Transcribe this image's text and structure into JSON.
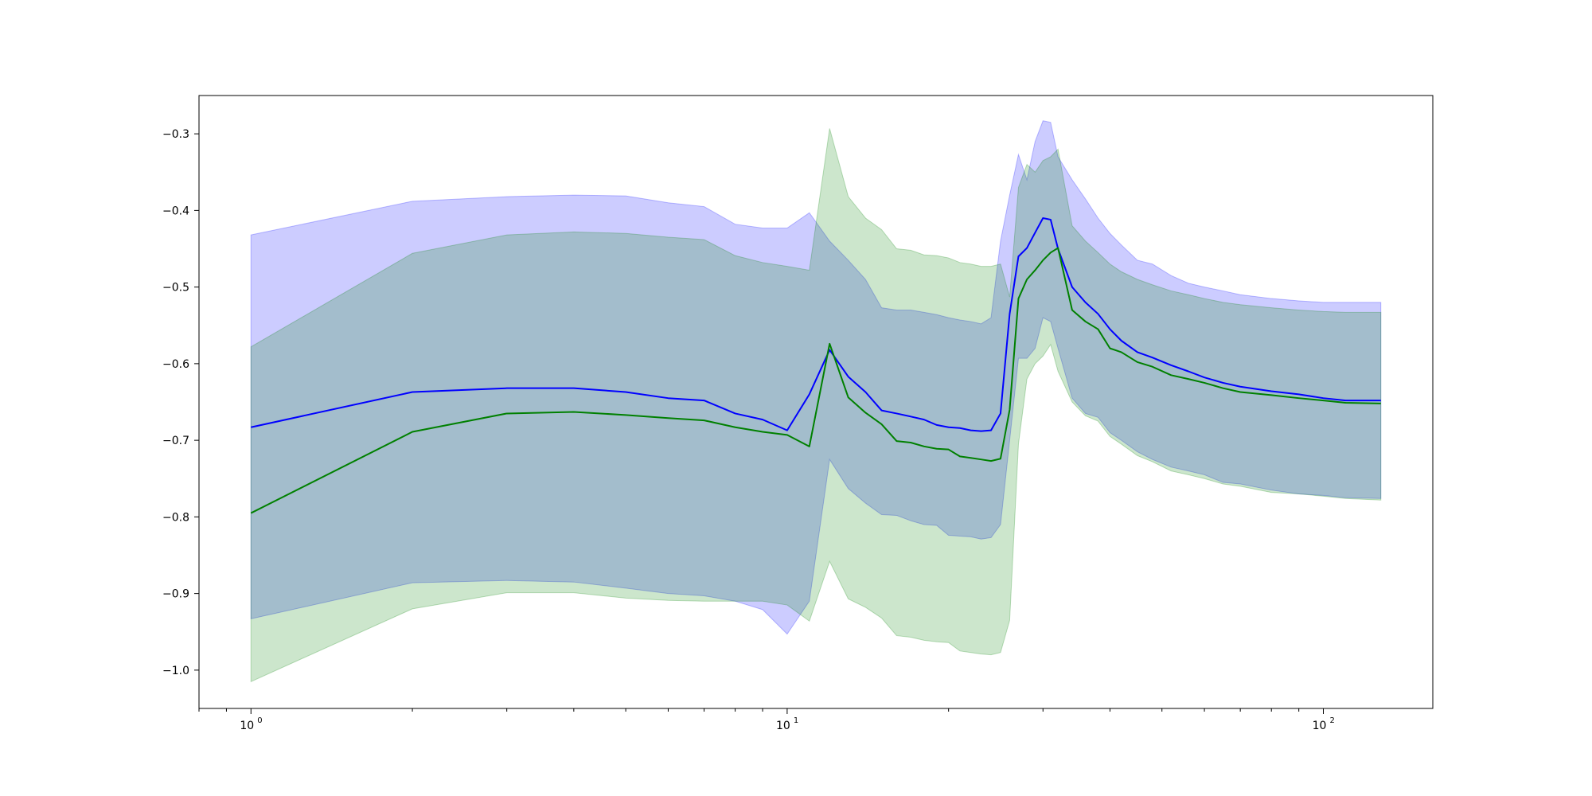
{
  "chart_data": {
    "type": "line",
    "title": "",
    "xlabel": "",
    "ylabel": "",
    "xscale": "log",
    "xlim": [
      0.8,
      160
    ],
    "ylim": [
      -1.05,
      -0.25
    ],
    "grid": false,
    "legend": "none",
    "x_ticks": [
      {
        "base": "10",
        "exp": "0"
      },
      {
        "base": "10",
        "exp": "1"
      },
      {
        "base": "10",
        "exp": "2"
      }
    ],
    "y_ticks": [
      "−0.3",
      "−0.4",
      "−0.5",
      "−0.6",
      "−0.7",
      "−0.8",
      "−0.9",
      "−1.0"
    ],
    "y_tick_values": [
      -0.3,
      -0.4,
      -0.5,
      -0.6,
      -0.7,
      -0.8,
      -0.9,
      -1.0
    ],
    "series": [
      {
        "color": "#0000ff",
        "band_color": "#0000ff",
        "band_opacity": 0.2,
        "x": [
          1,
          2,
          3,
          4,
          5,
          6,
          7,
          8,
          9,
          10,
          11,
          12,
          13,
          14,
          15,
          16,
          17,
          18,
          19,
          20,
          21,
          22,
          23,
          24,
          25,
          26,
          27,
          28,
          29,
          30,
          31,
          32,
          34,
          36,
          38,
          40,
          42,
          45,
          48,
          52,
          56,
          60,
          65,
          70,
          80,
          90,
          100,
          110,
          128
        ],
        "mean": [
          -0.683,
          -0.637,
          -0.632,
          -0.632,
          -0.637,
          -0.645,
          -0.648,
          -0.665,
          -0.673,
          -0.687,
          -0.64,
          -0.582,
          -0.617,
          -0.637,
          -0.661,
          -0.665,
          -0.669,
          -0.673,
          -0.68,
          -0.683,
          -0.684,
          -0.687,
          -0.688,
          -0.687,
          -0.665,
          -0.535,
          -0.46,
          -0.449,
          -0.429,
          -0.41,
          -0.412,
          -0.45,
          -0.5,
          -0.52,
          -0.535,
          -0.555,
          -0.57,
          -0.585,
          -0.592,
          -0.602,
          -0.61,
          -0.618,
          -0.625,
          -0.63,
          -0.636,
          -0.64,
          -0.645,
          -0.648,
          -0.648
        ],
        "upper": [
          -0.432,
          -0.388,
          -0.382,
          -0.38,
          -0.381,
          -0.39,
          -0.395,
          -0.418,
          -0.423,
          -0.423,
          -0.403,
          -0.44,
          -0.465,
          -0.49,
          -0.527,
          -0.53,
          -0.53,
          -0.533,
          -0.536,
          -0.54,
          -0.543,
          -0.545,
          -0.548,
          -0.54,
          -0.44,
          -0.38,
          -0.327,
          -0.36,
          -0.31,
          -0.283,
          -0.285,
          -0.33,
          -0.36,
          -0.385,
          -0.41,
          -0.43,
          -0.445,
          -0.465,
          -0.47,
          -0.485,
          -0.495,
          -0.5,
          -0.505,
          -0.51,
          -0.515,
          -0.518,
          -0.52,
          -0.52,
          -0.52
        ],
        "lower": [
          -0.933,
          -0.886,
          -0.883,
          -0.885,
          -0.893,
          -0.9,
          -0.903,
          -0.91,
          -0.921,
          -0.953,
          -0.91,
          -0.725,
          -0.763,
          -0.782,
          -0.797,
          -0.798,
          -0.805,
          -0.81,
          -0.811,
          -0.824,
          -0.825,
          -0.826,
          -0.829,
          -0.827,
          -0.81,
          -0.7,
          -0.593,
          -0.593,
          -0.58,
          -0.54,
          -0.545,
          -0.58,
          -0.645,
          -0.665,
          -0.67,
          -0.69,
          -0.7,
          -0.715,
          -0.725,
          -0.735,
          -0.74,
          -0.745,
          -0.755,
          -0.757,
          -0.765,
          -0.77,
          -0.772,
          -0.775,
          -0.776
        ]
      },
      {
        "color": "#008000",
        "band_color": "#008000",
        "band_opacity": 0.2,
        "x": [
          1,
          2,
          3,
          4,
          5,
          6,
          7,
          8,
          9,
          10,
          11,
          12,
          13,
          14,
          15,
          16,
          17,
          18,
          19,
          20,
          21,
          22,
          23,
          24,
          25,
          26,
          27,
          28,
          29,
          30,
          31,
          32,
          34,
          36,
          38,
          40,
          42,
          45,
          48,
          52,
          56,
          60,
          65,
          70,
          80,
          90,
          100,
          110,
          128
        ],
        "mean": [
          -0.795,
          -0.689,
          -0.665,
          -0.663,
          -0.667,
          -0.671,
          -0.674,
          -0.683,
          -0.689,
          -0.693,
          -0.708,
          -0.574,
          -0.644,
          -0.664,
          -0.679,
          -0.701,
          -0.703,
          -0.708,
          -0.711,
          -0.712,
          -0.721,
          -0.723,
          -0.725,
          -0.727,
          -0.724,
          -0.66,
          -0.515,
          -0.49,
          -0.478,
          -0.465,
          -0.455,
          -0.449,
          -0.53,
          -0.545,
          -0.555,
          -0.58,
          -0.585,
          -0.598,
          -0.604,
          -0.615,
          -0.62,
          -0.625,
          -0.632,
          -0.637,
          -0.641,
          -0.645,
          -0.648,
          -0.651,
          -0.652
        ],
        "upper": [
          -0.578,
          -0.456,
          -0.432,
          -0.428,
          -0.43,
          -0.435,
          -0.438,
          -0.459,
          -0.468,
          -0.473,
          -0.478,
          -0.293,
          -0.382,
          -0.41,
          -0.425,
          -0.45,
          -0.452,
          -0.458,
          -0.459,
          -0.462,
          -0.468,
          -0.47,
          -0.473,
          -0.473,
          -0.47,
          -0.513,
          -0.37,
          -0.34,
          -0.35,
          -0.335,
          -0.33,
          -0.32,
          -0.42,
          -0.44,
          -0.455,
          -0.47,
          -0.48,
          -0.49,
          -0.497,
          -0.505,
          -0.51,
          -0.515,
          -0.52,
          -0.523,
          -0.527,
          -0.53,
          -0.532,
          -0.533,
          -0.533
        ],
        "lower": [
          -1.015,
          -0.92,
          -0.899,
          -0.899,
          -0.906,
          -0.909,
          -0.91,
          -0.91,
          -0.91,
          -0.915,
          -0.936,
          -0.858,
          -0.907,
          -0.918,
          -0.932,
          -0.955,
          -0.957,
          -0.961,
          -0.963,
          -0.964,
          -0.975,
          -0.977,
          -0.979,
          -0.98,
          -0.977,
          -0.935,
          -0.705,
          -0.62,
          -0.6,
          -0.59,
          -0.575,
          -0.61,
          -0.65,
          -0.668,
          -0.675,
          -0.695,
          -0.705,
          -0.72,
          -0.728,
          -0.74,
          -0.745,
          -0.75,
          -0.757,
          -0.76,
          -0.768,
          -0.77,
          -0.773,
          -0.776,
          -0.778
        ]
      }
    ]
  }
}
